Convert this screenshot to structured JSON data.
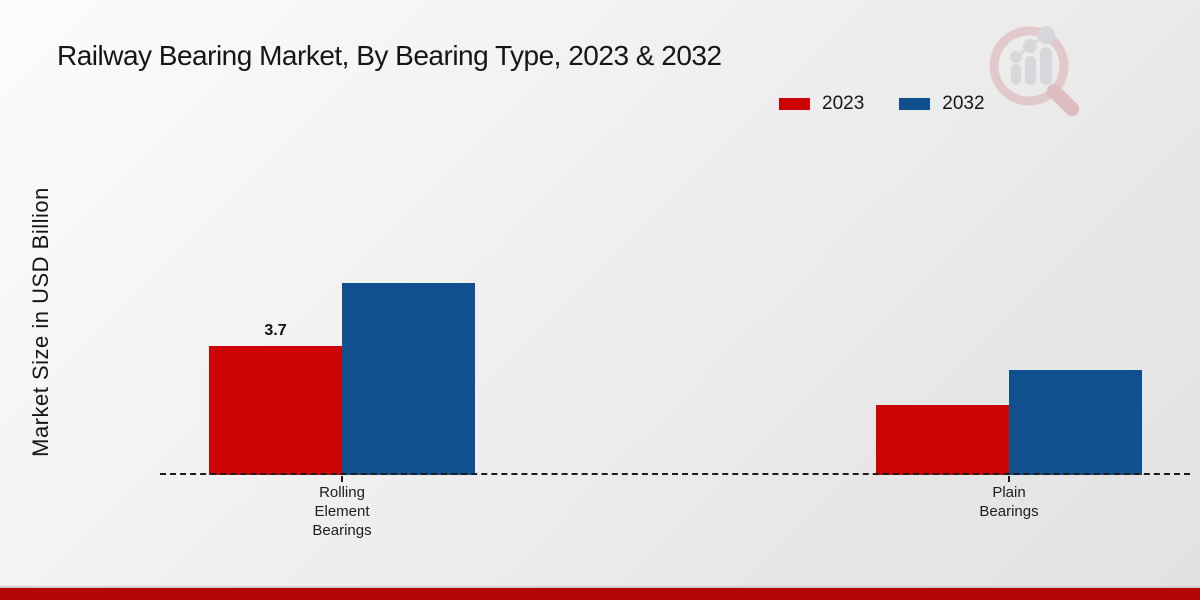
{
  "page": {
    "title": "Railway Bearing Market, By Bearing Type, 2023 & 2032"
  },
  "chart_data": {
    "type": "bar",
    "title": "Railway Bearing Market, By Bearing Type, 2023 & 2032",
    "xlabel": "",
    "ylabel": "Market Size in USD Billion",
    "categories": [
      "Rolling Element Bearings",
      "Plain Bearings"
    ],
    "series": [
      {
        "name": "2023",
        "color": "#cc0404",
        "values": [
          3.7,
          2.0
        ]
      },
      {
        "name": "2032",
        "color": "#11508e",
        "values": [
          5.5,
          3.0
        ]
      }
    ],
    "annotations": [
      {
        "text": "3.7",
        "series_index": 0,
        "category_index": 0
      }
    ],
    "ylim": [
      0,
      10
    ],
    "grid": false,
    "axis_style": "dashed-baseline-only",
    "legend_position": "top-right"
  },
  "branding": {
    "logo": "magnifier-bar-chart-logo",
    "footer_stripe_color": "#b30505"
  }
}
